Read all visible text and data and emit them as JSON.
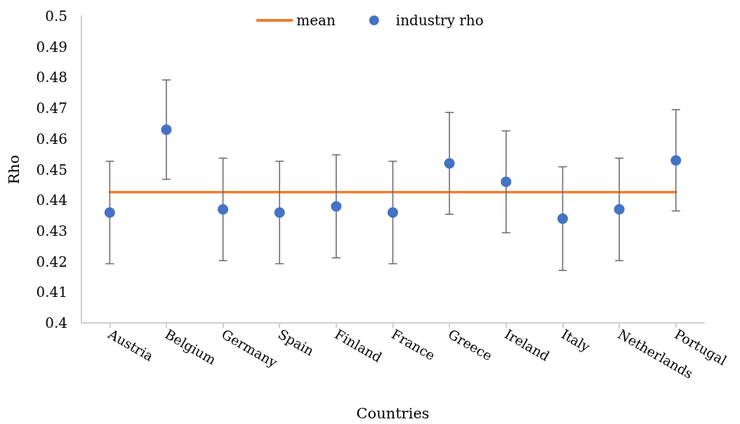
{
  "chart_data": {
    "type": "scatter",
    "xlabel": "Countries",
    "ylabel": "Rho",
    "categories": [
      "Austria",
      "Belgium",
      "Germany",
      "Spain",
      "Finland",
      "France",
      "Greece",
      "Ireland",
      "Italy",
      "Netherlands",
      "Portugal"
    ],
    "series": [
      {
        "name": "mean",
        "type": "line",
        "color": "#ed7d31",
        "marker": "none",
        "line_style": "solid",
        "values": [
          0.4426,
          0.4426,
          0.4426,
          0.4426,
          0.4426,
          0.4426,
          0.4426,
          0.4426,
          0.4426,
          0.4426,
          0.4426
        ]
      },
      {
        "name": "industry rho",
        "type": "scatter",
        "color": "#4472c4",
        "marker": "circle",
        "values": [
          0.436,
          0.463,
          0.437,
          0.436,
          0.438,
          0.436,
          0.452,
          0.446,
          0.434,
          0.437,
          0.453
        ],
        "errors": [
          0.0167,
          0.0162,
          0.0167,
          0.0167,
          0.0168,
          0.0167,
          0.0166,
          0.0166,
          0.0169,
          0.0167,
          0.0165
        ]
      }
    ],
    "ylim": [
      0.4,
      0.5
    ],
    "yticks": [
      0.4,
      0.41,
      0.42,
      0.43,
      0.44,
      0.45,
      0.46,
      0.47,
      0.48,
      0.49,
      0.5
    ],
    "grid": false,
    "legend": "top"
  }
}
